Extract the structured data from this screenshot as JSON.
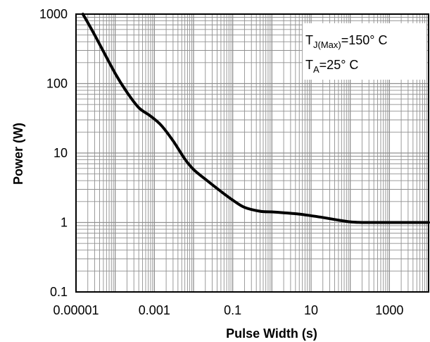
{
  "chart_data": {
    "type": "line",
    "title": "",
    "xlabel": "Pulse Width (s)",
    "ylabel": "Power (W)",
    "x_scale": "log",
    "y_scale": "log",
    "xlim": [
      1e-05,
      10000
    ],
    "ylim": [
      0.1,
      1000
    ],
    "x_tick_labels": [
      "0.00001",
      "0.001",
      "0.1",
      "10",
      "1000"
    ],
    "y_tick_labels": [
      "0.1",
      "1",
      "10",
      "100",
      "1000"
    ],
    "grid": true,
    "colors": {
      "line": "#000000",
      "grid": "#909090",
      "frame": "#000000",
      "annotation_box": "#ffffff"
    },
    "annotation": {
      "line1_main": "T",
      "line1_sub": "J(Max)",
      "line1_rest": "=150° C",
      "line2_main": "T",
      "line2_sub": "A",
      "line2_rest": "=25° C",
      "position": "top-right"
    },
    "series": [
      {
        "x": [
          1.5e-05,
          3e-05,
          0.0001,
          0.0002,
          0.0004,
          0.0008,
          0.0015,
          0.003,
          0.006,
          0.01,
          0.02,
          0.05,
          0.1,
          0.2,
          0.5,
          1,
          2,
          5,
          10,
          20,
          50,
          100,
          200,
          500,
          1000,
          2000,
          5000,
          10000
        ],
        "values": [
          1000,
          500,
          140,
          75,
          45,
          34,
          25,
          15,
          8.2,
          5.8,
          4.2,
          2.8,
          2.1,
          1.65,
          1.45,
          1.42,
          1.38,
          1.32,
          1.25,
          1.18,
          1.08,
          1.02,
          1.0,
          1.0,
          1.0,
          1.0,
          1.0,
          1.0
        ]
      }
    ]
  }
}
